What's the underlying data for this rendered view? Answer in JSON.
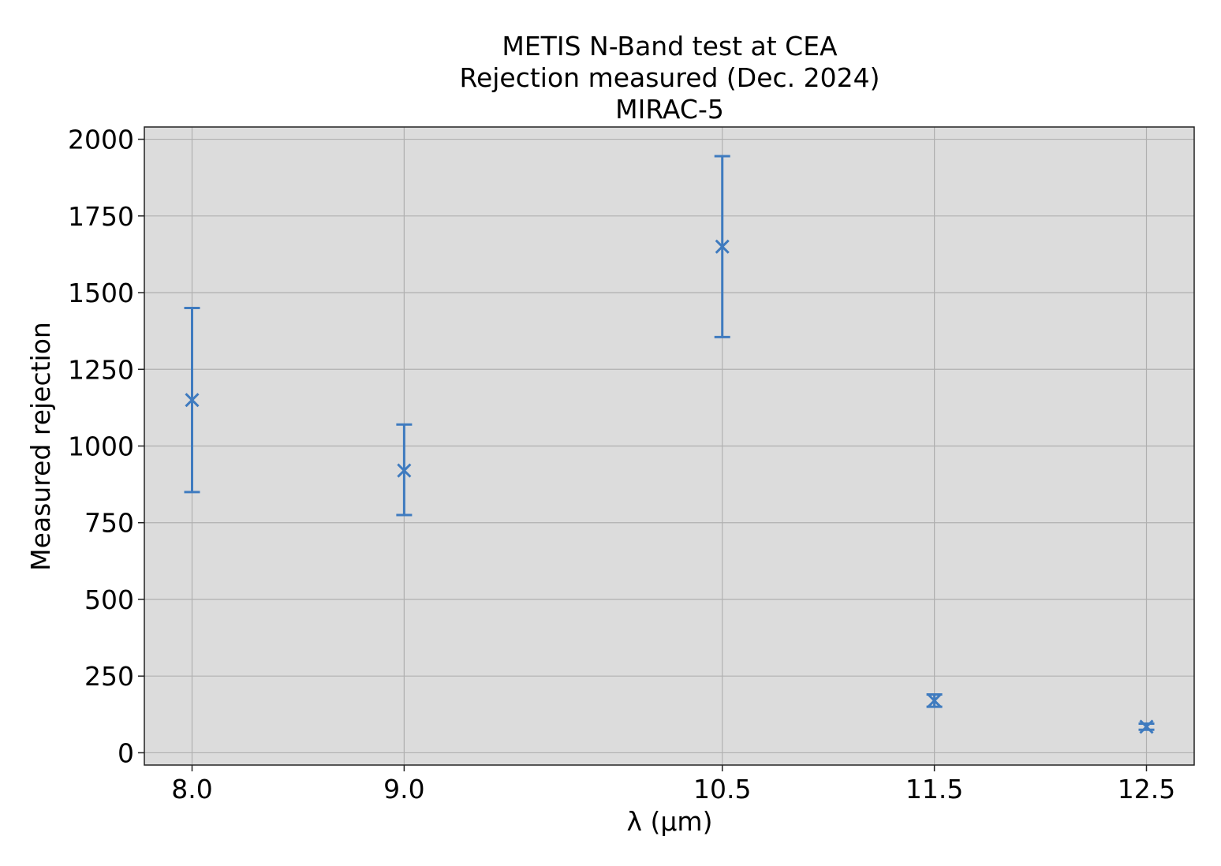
{
  "chart_data": {
    "type": "scatter",
    "title_lines": [
      "METIS N-Band test at CEA",
      "Rejection measured (Dec. 2024)",
      "MIRAC-5"
    ],
    "xlabel": "λ (µm)",
    "ylabel": "Measured rejection",
    "xlim": [
      7.775,
      12.725
    ],
    "ylim": [
      -40,
      2040
    ],
    "xticks": [
      8.0,
      9.0,
      10.5,
      11.5,
      12.5
    ],
    "xtick_labels": [
      "8.0",
      "9.0",
      "10.5",
      "11.5",
      "12.5"
    ],
    "yticks": [
      0,
      250,
      500,
      750,
      1000,
      1250,
      1500,
      1750,
      2000
    ],
    "ytick_labels": [
      "0",
      "250",
      "500",
      "750",
      "1000",
      "1250",
      "1500",
      "1750",
      "2000"
    ],
    "grid": true,
    "marker": "x",
    "error_bars": true,
    "points": [
      {
        "x": 8.0,
        "y": 1150,
        "y_low": 850,
        "y_high": 1450
      },
      {
        "x": 9.0,
        "y": 920,
        "y_low": 775,
        "y_high": 1070
      },
      {
        "x": 10.5,
        "y": 1650,
        "y_low": 1355,
        "y_high": 1945
      },
      {
        "x": 11.5,
        "y": 170,
        "y_low": 150,
        "y_high": 190
      },
      {
        "x": 12.5,
        "y": 85,
        "y_low": 75,
        "y_high": 95
      }
    ],
    "colors": {
      "series": "#3f7bbf",
      "background": "#dcdcdc",
      "grid": "#b0b0b0"
    }
  }
}
